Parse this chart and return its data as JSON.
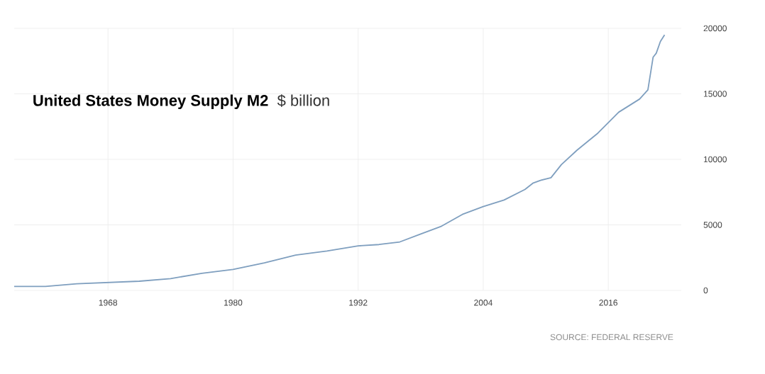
{
  "chart_data": {
    "type": "line",
    "title": "United States Money Supply M2",
    "subtitle": "$ billion",
    "annotations": [
      "SOURCE: FEDERAL RESERVE"
    ],
    "x": [
      1959,
      1962,
      1965,
      1968,
      1971,
      1974,
      1977,
      1980,
      1983,
      1986,
      1989,
      1992,
      1994,
      1996,
      1998,
      2000,
      2002,
      2004,
      2006,
      2008,
      2008.8,
      2009.5,
      2010.5,
      2011.5,
      2013,
      2015,
      2016,
      2017,
      2018,
      2019,
      2019.8,
      2020.3,
      2020.6,
      2021,
      2021.4
    ],
    "values": [
      300,
      300,
      500,
      600,
      700,
      900,
      1300,
      1600,
      2100,
      2700,
      3000,
      3400,
      3500,
      3700,
      4300,
      4900,
      5800,
      6400,
      6900,
      7700,
      8200,
      8400,
      8600,
      9600,
      10700,
      12000,
      12800,
      13600,
      14100,
      14600,
      15300,
      17800,
      18100,
      19000,
      19500
    ],
    "color": "#7f9fbf",
    "xlim": [
      1959,
      2023
    ],
    "ylim": [
      0,
      20000
    ],
    "xticks": [
      1968,
      1980,
      1992,
      2004,
      2016
    ],
    "yticks": [
      0,
      5000,
      10000,
      15000,
      20000
    ],
    "grid": true
  }
}
